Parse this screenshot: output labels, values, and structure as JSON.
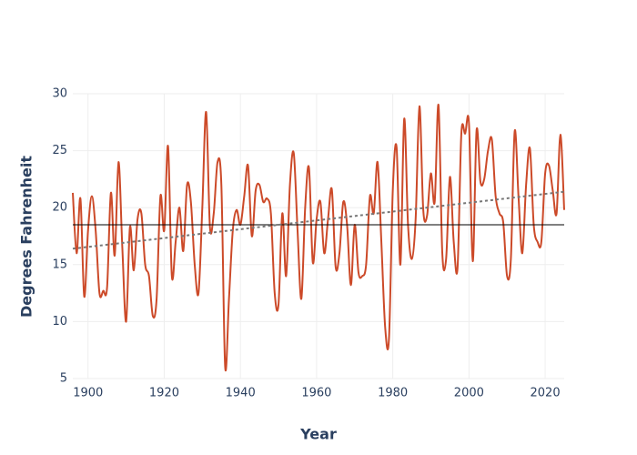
{
  "chart_data": {
    "type": "line",
    "xlabel": "Year",
    "ylabel": "Degrees Fahrenheit",
    "x": [
      1896,
      1897,
      1898,
      1899,
      1900,
      1901,
      1902,
      1903,
      1904,
      1905,
      1906,
      1907,
      1908,
      1909,
      1910,
      1911,
      1912,
      1913,
      1914,
      1915,
      1916,
      1917,
      1918,
      1919,
      1920,
      1921,
      1922,
      1923,
      1924,
      1925,
      1926,
      1927,
      1928,
      1929,
      1930,
      1931,
      1932,
      1933,
      1934,
      1935,
      1936,
      1937,
      1938,
      1939,
      1940,
      1941,
      1942,
      1943,
      1944,
      1945,
      1946,
      1947,
      1948,
      1949,
      1950,
      1951,
      1952,
      1953,
      1954,
      1955,
      1956,
      1957,
      1958,
      1959,
      1960,
      1961,
      1962,
      1963,
      1964,
      1965,
      1966,
      1967,
      1968,
      1969,
      1970,
      1971,
      1972,
      1973,
      1974,
      1975,
      1976,
      1977,
      1978,
      1979,
      1980,
      1981,
      1982,
      1983,
      1984,
      1985,
      1986,
      1987,
      1988,
      1989,
      1990,
      1991,
      1992,
      1993,
      1994,
      1995,
      1996,
      1997,
      1998,
      1999,
      2000,
      2001,
      2002,
      2003,
      2004,
      2005,
      2006,
      2007,
      2008,
      2009,
      2010,
      2011,
      2012,
      2013,
      2014,
      2015,
      2016,
      2017,
      2018,
      2019,
      2020,
      2021,
      2022,
      2023,
      2024,
      2025
    ],
    "series": [
      {
        "color": "#cc4a29",
        "style": "solid",
        "values": [
          21.3,
          16,
          20.8,
          12.2,
          18,
          21,
          18,
          12.5,
          12.7,
          13,
          21.3,
          15.8,
          24,
          16.5,
          10,
          18.3,
          14.5,
          19,
          19.5,
          15,
          14,
          10.5,
          12,
          21,
          18,
          25.4,
          14,
          17,
          20,
          16.2,
          22,
          20.5,
          15,
          12.5,
          20,
          28.4,
          18.3,
          19.5,
          24,
          22,
          6,
          12,
          18,
          19.8,
          18.5,
          21,
          23.7,
          17.5,
          21.5,
          22,
          20.5,
          20.8,
          19.5,
          12.5,
          11.5,
          19.5,
          14,
          22,
          24.8,
          18,
          12,
          20,
          23.5,
          15.2,
          19,
          20.5,
          16,
          19,
          21.6,
          14.8,
          16,
          20.5,
          18.5,
          13.2,
          18.5,
          14.3,
          14,
          15,
          21,
          19.5,
          24,
          17,
          9.5,
          8.5,
          21.5,
          25.3,
          15,
          27.8,
          18.5,
          15.5,
          19,
          28.9,
          19.8,
          19.3,
          23,
          20.5,
          29,
          16,
          15.5,
          22.7,
          17,
          14.7,
          26.5,
          26.5,
          27.4,
          15.3,
          26.8,
          22.3,
          22.5,
          25,
          26,
          21,
          19.5,
          18.7,
          14,
          15.5,
          26.7,
          21,
          16,
          22,
          25.2,
          18.5,
          17,
          17,
          23,
          23.7,
          21.5,
          19.5,
          26.4,
          19.8
        ]
      },
      {
        "color": "#000000",
        "style": "solid",
        "x": [
          1896,
          2025
        ],
        "values": [
          18.5,
          18.5
        ]
      },
      {
        "color": "#777777",
        "style": "dot",
        "x": [
          1896,
          2025
        ],
        "values": [
          16.4,
          21.4
        ]
      }
    ],
    "xlim": [
      1896,
      2025
    ],
    "xticks": [
      1900,
      1920,
      1940,
      1960,
      1980,
      2000,
      2020
    ],
    "ylim": [
      5,
      30
    ],
    "yticks": [
      5,
      10,
      15,
      20,
      25,
      30
    ],
    "grid": true
  }
}
